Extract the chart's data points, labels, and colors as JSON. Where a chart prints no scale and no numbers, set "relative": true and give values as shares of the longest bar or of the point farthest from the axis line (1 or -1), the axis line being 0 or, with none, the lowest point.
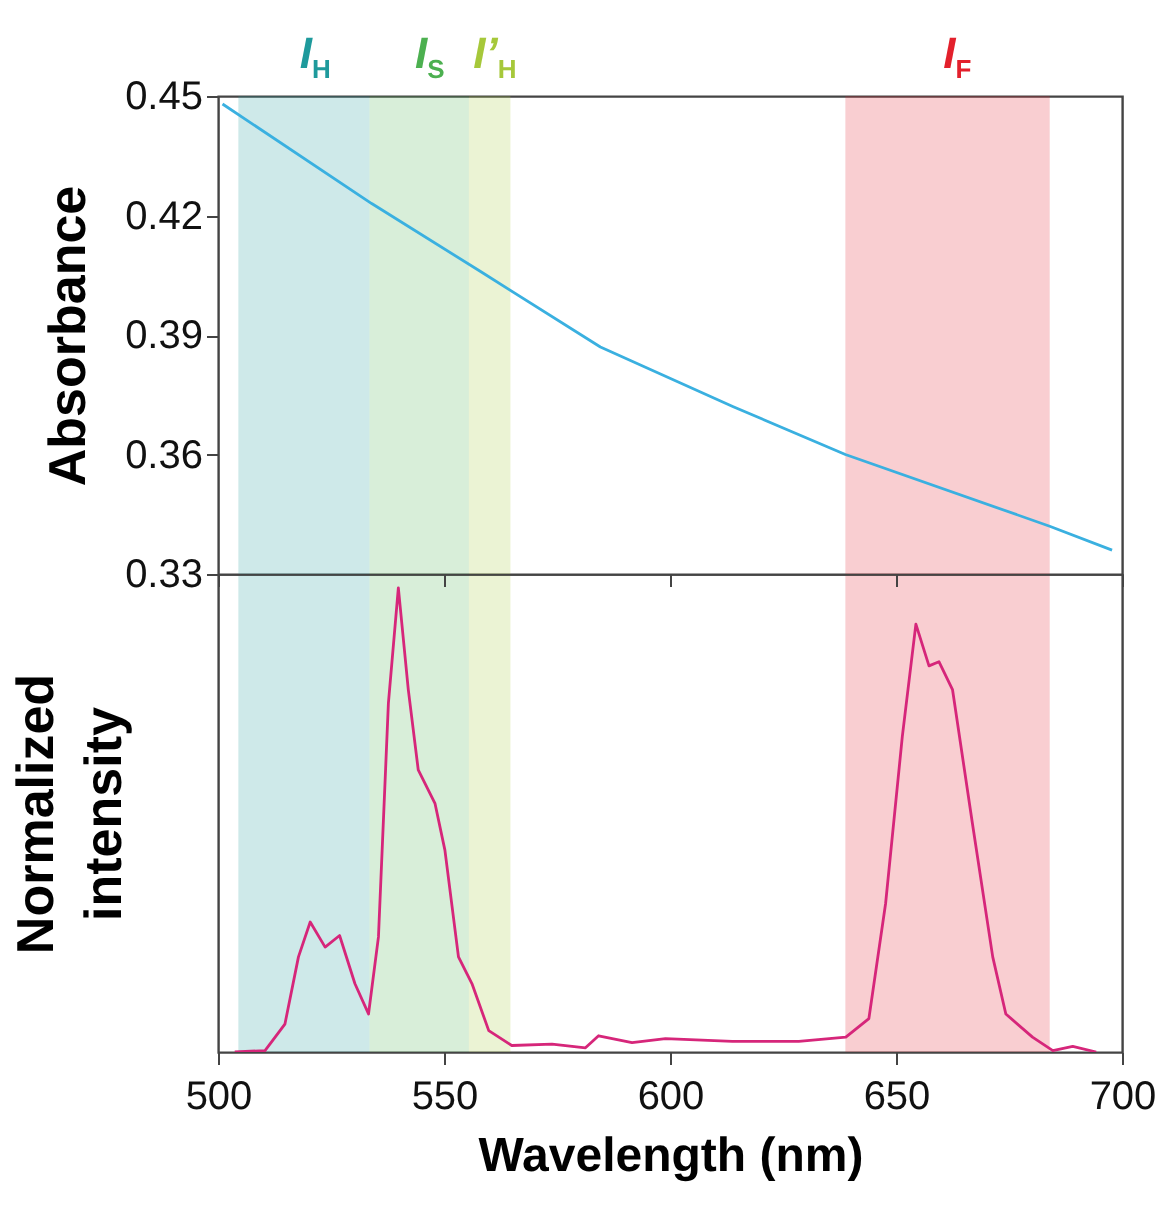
{
  "chart_data": [
    {
      "type": "line",
      "ylabel": "Absorbance",
      "xlim": [
        500,
        700
      ],
      "xticks": [
        500,
        550,
        600,
        650,
        700
      ],
      "ylim": [
        0.33,
        0.45
      ],
      "yticks": [
        0.33,
        0.36,
        0.39,
        0.42,
        0.45
      ],
      "tick_labels": "y",
      "grid": false,
      "x": [
        501,
        534,
        558,
        584.6,
        614,
        638.8,
        684,
        697.8
      ],
      "series": [
        {
          "color": "#3ab0e0",
          "values": [
            0.448,
            0.423,
            0.406,
            0.387,
            0.372,
            0.36,
            0.342,
            0.336
          ]
        }
      ],
      "bands": [
        {
          "axis": "x",
          "from": 504.5,
          "to": 533.5,
          "label": "I$_{H}$",
          "color": "#1e9a9c"
        },
        {
          "axis": "x",
          "from": 533.5,
          "to": 555.5,
          "label": "I$_{S}$",
          "color": "#4cb050"
        },
        {
          "axis": "x",
          "from": 555.5,
          "to": 564.7,
          "label": "I’$_{H}$",
          "color": "#a6c83a"
        },
        {
          "axis": "x",
          "from": 638.8,
          "to": 684,
          "label": "I$_{F}$",
          "color": "#e3202c"
        }
      ]
    },
    {
      "type": "line",
      "relative": true,
      "xlabel": "Wavelength (nm)",
      "ylabel": "Normalized intensity",
      "xlim": [
        500,
        700
      ],
      "xticks": [
        500,
        550,
        600,
        650,
        700
      ],
      "grid": false,
      "x": [
        503.7,
        510.4,
        514.8,
        517.8,
        520.4,
        523.7,
        526.9,
        530.3,
        533.3,
        535.5,
        537.7,
        539.9,
        542.1,
        544.3,
        548,
        550.2,
        553.2,
        556.2,
        559.9,
        565,
        573.9,
        581.3,
        584.2,
        591.6,
        599,
        613.8,
        628.5,
        638.9,
        644,
        647.7,
        651.4,
        654.4,
        657.3,
        659.5,
        662.5,
        666.9,
        671.4,
        674.3,
        680.2,
        684.7,
        689.1,
        694.3
      ],
      "series": [
        {
          "color": "#d6267a",
          "values": [
            0,
            0.003,
            0.06,
            0.205,
            0.28,
            0.226,
            0.251,
            0.147,
            0.082,
            0.248,
            0.752,
            1,
            0.781,
            0.608,
            0.536,
            0.435,
            0.205,
            0.147,
            0.046,
            0.014,
            0.017,
            0.009,
            0.035,
            0.02,
            0.029,
            0.023,
            0.023,
            0.032,
            0.072,
            0.32,
            0.68,
            0.922,
            0.832,
            0.841,
            0.781,
            0.493,
            0.205,
            0.082,
            0.032,
            0.003,
            0.012,
            0
          ]
        }
      ],
      "bands": [
        {
          "axis": "x",
          "from": 504.5,
          "to": 533.5,
          "color": "#1e9a9c"
        },
        {
          "axis": "x",
          "from": 533.5,
          "to": 555.5,
          "color": "#4cb050"
        },
        {
          "axis": "x",
          "from": 555.5,
          "to": 564.7,
          "color": "#a6c83a"
        },
        {
          "axis": "x",
          "from": 638.8,
          "to": 684,
          "color": "#e3202c"
        }
      ]
    }
  ]
}
